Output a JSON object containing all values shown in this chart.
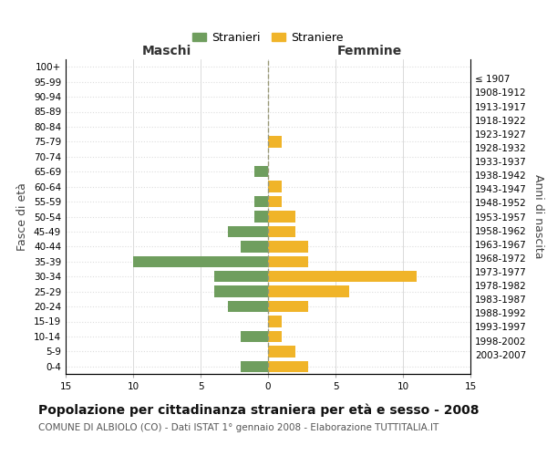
{
  "age_groups": [
    "100+",
    "95-99",
    "90-94",
    "85-89",
    "80-84",
    "75-79",
    "70-74",
    "65-69",
    "60-64",
    "55-59",
    "50-54",
    "45-49",
    "40-44",
    "35-39",
    "30-34",
    "25-29",
    "20-24",
    "15-19",
    "10-14",
    "5-9",
    "0-4"
  ],
  "birth_years": [
    "≤ 1907",
    "1908-1912",
    "1913-1917",
    "1918-1922",
    "1923-1927",
    "1928-1932",
    "1933-1937",
    "1938-1942",
    "1943-1947",
    "1948-1952",
    "1953-1957",
    "1958-1962",
    "1963-1967",
    "1968-1972",
    "1973-1977",
    "1978-1982",
    "1983-1987",
    "1988-1992",
    "1993-1997",
    "1998-2002",
    "2003-2007"
  ],
  "maschi": [
    0,
    0,
    0,
    0,
    0,
    0,
    0,
    1,
    0,
    1,
    1,
    3,
    2,
    10,
    4,
    4,
    3,
    0,
    2,
    0,
    2
  ],
  "femmine": [
    0,
    0,
    0,
    0,
    0,
    1,
    0,
    0,
    1,
    1,
    2,
    2,
    3,
    3,
    11,
    6,
    3,
    1,
    1,
    2,
    3
  ],
  "maschi_color": "#6f9e5e",
  "femmine_color": "#f0b429",
  "background_color": "#ffffff",
  "grid_color": "#cccccc",
  "grid_y_color": "#dddddd",
  "dashed_line_color": "#999977",
  "xlim": 15,
  "title": "Popolazione per cittadinanza straniera per età e sesso - 2008",
  "subtitle": "COMUNE DI ALBIOLO (CO) - Dati ISTAT 1° gennaio 2008 - Elaborazione TUTTITALIA.IT",
  "ylabel_left": "Fasce di età",
  "ylabel_right": "Anni di nascita",
  "header_left": "Maschi",
  "header_right": "Femmine",
  "legend_maschi": "Stranieri",
  "legend_femmine": "Straniere",
  "title_fontsize": 10,
  "subtitle_fontsize": 7.5,
  "tick_fontsize": 7.5,
  "label_fontsize": 9,
  "header_fontsize": 10
}
